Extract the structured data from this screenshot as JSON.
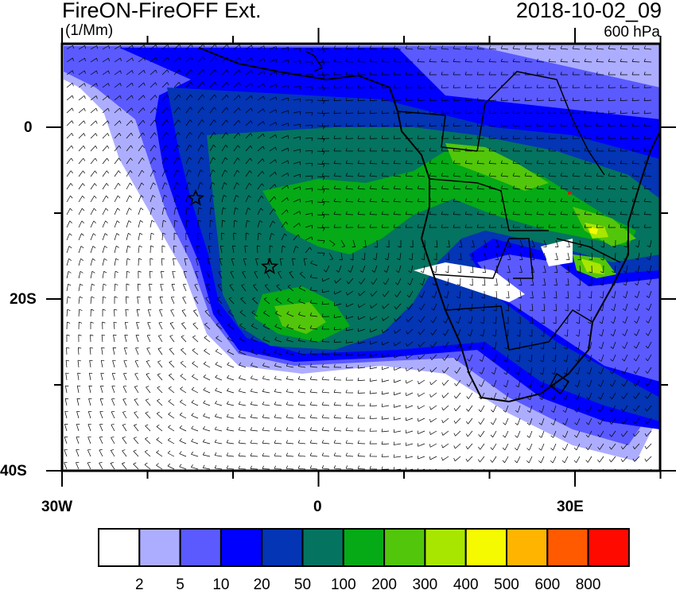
{
  "title": "FireON-FireOFF Ext.",
  "units": "(1/Mm)",
  "datetime": "2018-10-02_09",
  "level": "600 hPa",
  "map": {
    "region": "Southern Africa and South Atlantic",
    "lon_range": [
      -30,
      40
    ],
    "lat_range": [
      -40,
      10
    ],
    "x_ticks": [
      "30W",
      "0",
      "30E"
    ],
    "y_ticks": [
      "0",
      "20S",
      "40S"
    ],
    "overlay": "wind barbs",
    "markers": [
      "star",
      "star"
    ]
  },
  "colorbar": {
    "labels": [
      "2",
      "5",
      "10",
      "20",
      "50",
      "100",
      "200",
      "300",
      "400",
      "500",
      "600",
      "800"
    ],
    "colors": [
      "#ffffff",
      "#adadff",
      "#5a5aff",
      "#0000ff",
      "#0335b4",
      "#04735f",
      "#05aa16",
      "#52c60a",
      "#a8e600",
      "#f5fa00",
      "#ffb400",
      "#ff5a00",
      "#ff0a00"
    ]
  }
}
